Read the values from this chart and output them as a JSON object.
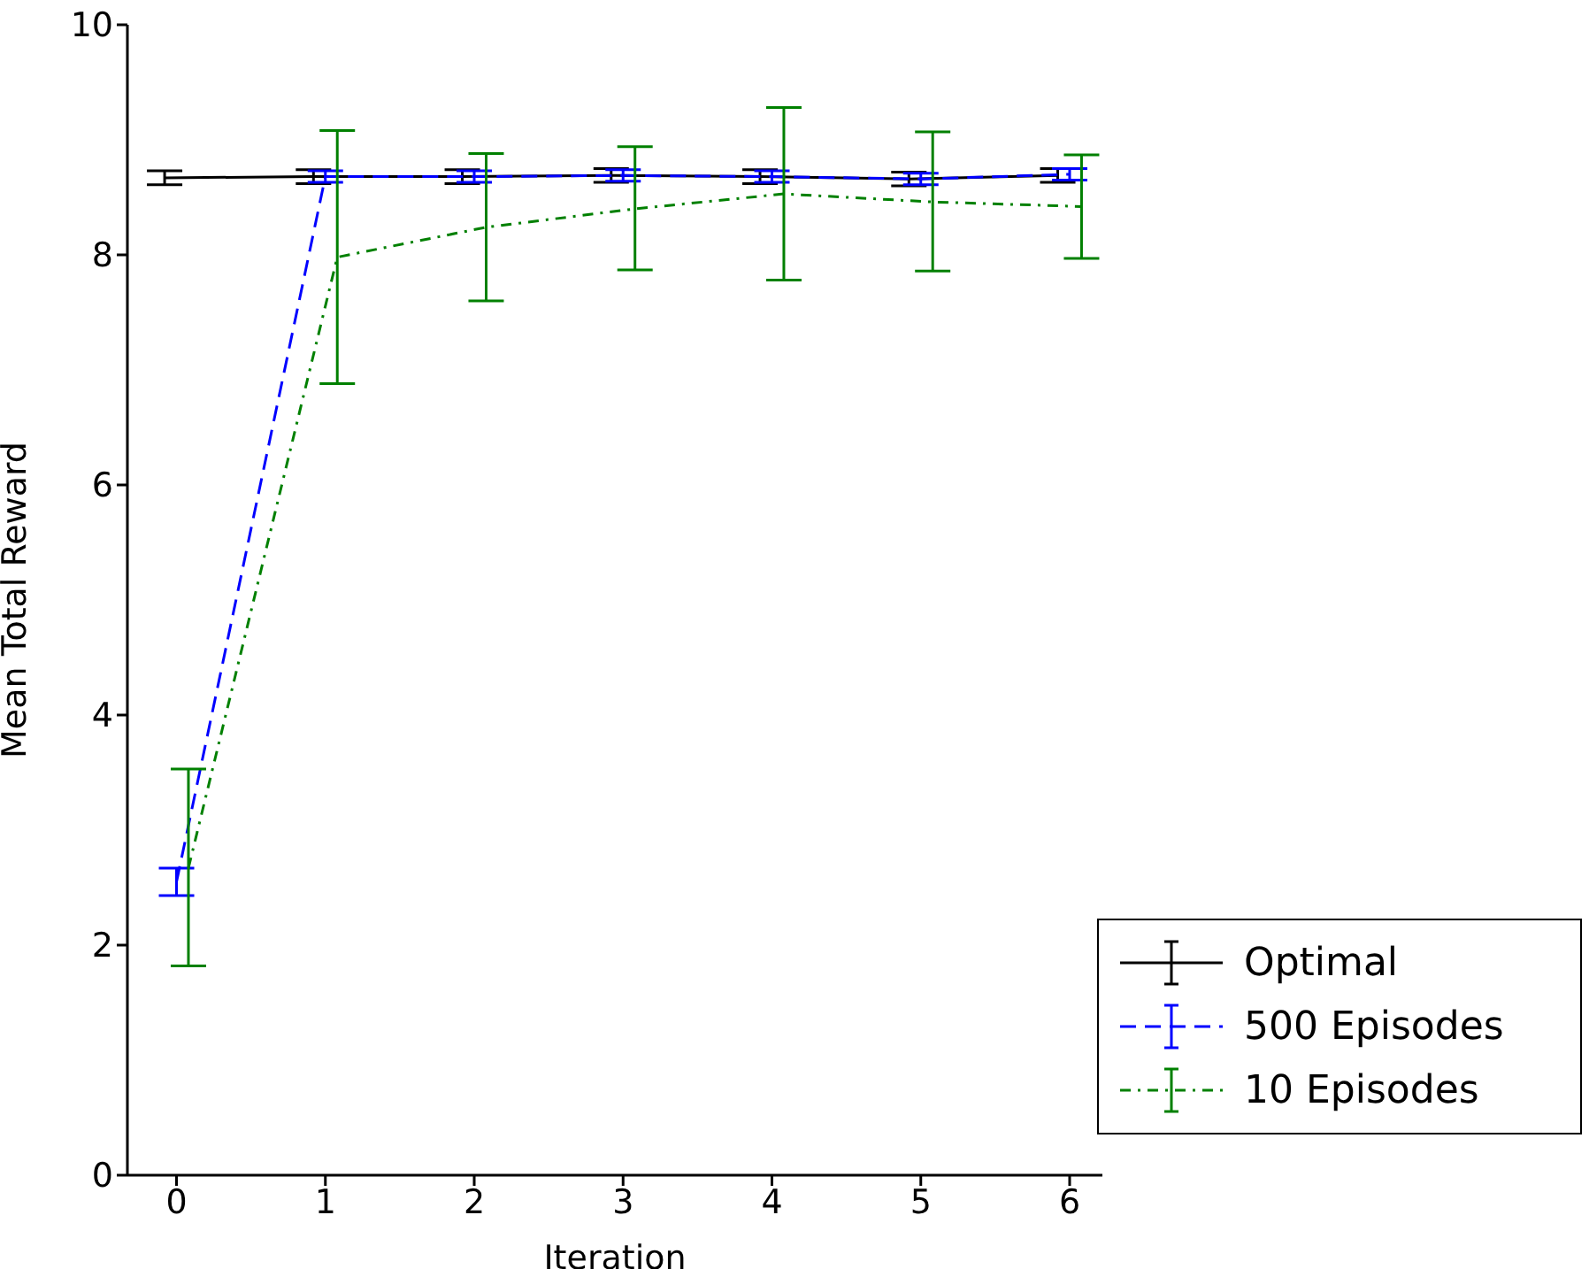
{
  "chart_data": {
    "type": "line",
    "xlabel": "Iteration",
    "ylabel": "Mean Total Reward",
    "xlim": [
      -0.33,
      6.22
    ],
    "xticks": [
      0,
      1,
      2,
      3,
      4,
      5,
      6
    ],
    "ylim": [
      0,
      10
    ],
    "yticks": [
      0,
      2,
      4,
      6,
      8,
      10
    ],
    "grid": false,
    "legend": "bottom right",
    "marker": "none",
    "series": [
      {
        "name": "Optimal",
        "color": "#000000",
        "line_style": "solid",
        "x": [
          -0.08,
          0.92,
          1.92,
          2.92,
          3.92,
          4.92,
          5.92
        ],
        "values": [
          8.67,
          8.68,
          8.68,
          8.69,
          8.68,
          8.66,
          8.69
        ],
        "errors": [
          0.06,
          0.06,
          0.06,
          0.06,
          0.06,
          0.06,
          0.06
        ]
      },
      {
        "name": "500 Episodes",
        "color": "#0000ff",
        "line_style": "dashed",
        "x": [
          0,
          1,
          2,
          3,
          4,
          5,
          6
        ],
        "values": [
          2.55,
          8.68,
          8.68,
          8.69,
          8.68,
          8.66,
          8.7
        ],
        "errors": [
          0.12,
          0.05,
          0.05,
          0.05,
          0.05,
          0.05,
          0.05
        ]
      },
      {
        "name": "10 Episodes",
        "color": "#008000",
        "line_style": "dotted",
        "x": [
          0.08,
          1.08,
          2.08,
          3.08,
          4.08,
          5.08,
          6.08
        ],
        "values": [
          2.67,
          7.98,
          8.24,
          8.4,
          8.53,
          8.46,
          8.42
        ],
        "errors": [
          [
            1.82,
            3.53
          ],
          [
            6.88,
            9.08
          ],
          [
            7.6,
            8.88
          ],
          [
            7.87,
            8.94
          ],
          [
            7.78,
            9.28
          ],
          [
            7.86,
            9.07
          ],
          [
            7.97,
            8.87
          ]
        ]
      }
    ]
  }
}
